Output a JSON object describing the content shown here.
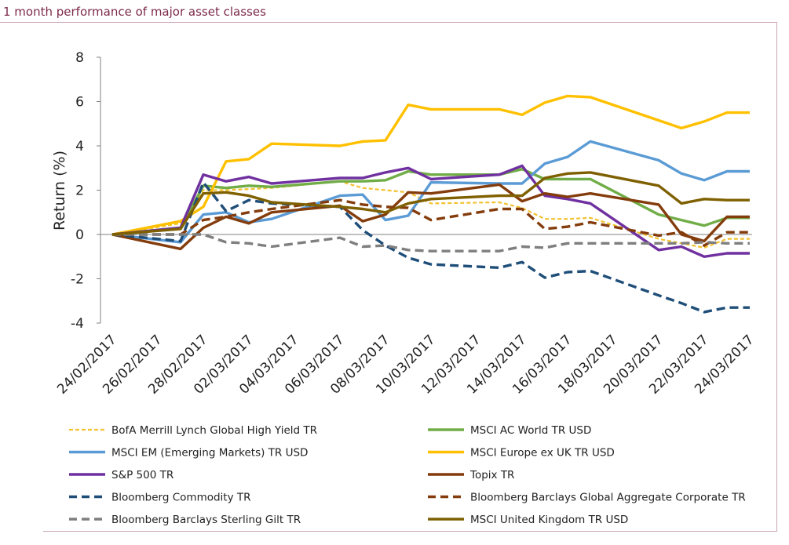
{
  "header": {
    "title": "1 month performance of major asset classes"
  },
  "chart_data": {
    "type": "line",
    "title": "",
    "xlabel": "",
    "ylabel": "Return (%)",
    "ylim": [
      -4,
      8
    ],
    "yticks": [
      -4,
      -2,
      0,
      2,
      4,
      6,
      8
    ],
    "grid": false,
    "legend_position": "bottom",
    "x": [
      "24/02/2017",
      "27/02/2017",
      "28/02/2017",
      "01/03/2017",
      "02/03/2017",
      "03/03/2017",
      "06/03/2017",
      "07/03/2017",
      "08/03/2017",
      "09/03/2017",
      "10/03/2017",
      "13/03/2017",
      "14/03/2017",
      "15/03/2017",
      "16/03/2017",
      "17/03/2017",
      "20/03/2017",
      "21/03/2017",
      "22/03/2017",
      "23/03/2017",
      "24/03/2017"
    ],
    "xticks": [
      "24/02/2017",
      "26/02/2017",
      "28/02/2017",
      "02/03/2017",
      "04/03/2017",
      "06/03/2017",
      "08/03/2017",
      "10/03/2017",
      "12/03/2017",
      "14/03/2017",
      "16/03/2017",
      "18/03/2017",
      "20/03/2017",
      "22/03/2017",
      "24/03/2017"
    ],
    "series": [
      {
        "name": "BofA Merrill Lynch Global High Yield TR",
        "color": "#f2c230",
        "dash": "short",
        "values": [
          0,
          0.5,
          2.0,
          2.0,
          2.05,
          2.1,
          2.4,
          2.1,
          2.0,
          1.9,
          1.4,
          1.45,
          1.2,
          0.7,
          0.7,
          0.75,
          -0.2,
          -0.4,
          -0.6,
          -0.2,
          -0.2
        ]
      },
      {
        "name": "MSCI AC World TR USD",
        "color": "#71ad47",
        "dash": "none",
        "values": [
          0,
          0.3,
          2.2,
          2.1,
          2.2,
          2.15,
          2.4,
          2.4,
          2.45,
          2.85,
          2.7,
          2.7,
          2.95,
          2.5,
          2.5,
          2.5,
          0.9,
          0.65,
          0.4,
          0.75,
          0.75
        ]
      },
      {
        "name": "MSCI EM (Emerging Markets) TR USD",
        "color": "#5b9bd5",
        "dash": "none",
        "values": [
          0,
          -0.35,
          0.9,
          1.0,
          0.55,
          0.7,
          1.75,
          1.8,
          0.65,
          0.85,
          2.35,
          2.3,
          2.3,
          3.2,
          3.5,
          4.2,
          3.35,
          2.75,
          2.45,
          2.85,
          2.85
        ]
      },
      {
        "name": "MSCI Europe ex UK TR USD",
        "color": "#ffc000",
        "dash": "none",
        "values": [
          0,
          0.6,
          1.25,
          3.3,
          3.4,
          4.1,
          4.0,
          4.2,
          4.25,
          5.85,
          5.65,
          5.65,
          5.4,
          5.95,
          6.25,
          6.2,
          5.15,
          4.8,
          5.1,
          5.5,
          5.5
        ]
      },
      {
        "name": "S&P 500 TR",
        "color": "#7030a0",
        "dash": "none",
        "values": [
          0,
          0.3,
          2.7,
          2.4,
          2.6,
          2.3,
          2.55,
          2.55,
          2.8,
          3.0,
          2.5,
          2.7,
          3.1,
          1.75,
          1.6,
          1.4,
          -0.7,
          -0.55,
          -1.0,
          -0.85,
          -0.85
        ]
      },
      {
        "name": "Topix TR",
        "color": "#843c0c",
        "dash": "none",
        "values": [
          0,
          -0.65,
          0.3,
          0.8,
          0.5,
          1.0,
          1.3,
          0.6,
          0.9,
          1.9,
          1.85,
          2.25,
          1.5,
          1.85,
          1.7,
          1.85,
          1.35,
          0.0,
          -0.3,
          0.8,
          0.8
        ]
      },
      {
        "name": "Bloomberg Commodity TR",
        "color": "#1f4e79",
        "dash": "long",
        "values": [
          0,
          -0.3,
          2.35,
          1.05,
          1.55,
          1.4,
          1.25,
          0.2,
          -0.5,
          -1.05,
          -1.35,
          -1.5,
          -1.25,
          -1.95,
          -1.7,
          -1.65,
          -2.75,
          -3.1,
          -3.5,
          -3.3,
          -3.3
        ]
      },
      {
        "name": "Bloomberg Barclays Global Aggregate Corporate TR",
        "color": "#843c0c",
        "dash": "long",
        "values": [
          0,
          0.0,
          0.65,
          0.8,
          1.0,
          1.15,
          1.55,
          1.35,
          1.25,
          1.2,
          0.65,
          1.15,
          1.15,
          0.25,
          0.35,
          0.55,
          -0.05,
          0.1,
          -0.5,
          0.1,
          0.1
        ]
      },
      {
        "name": "Bloomberg Barclays Sterling Gilt TR",
        "color": "#7f7f7f",
        "dash": "long",
        "values": [
          0,
          0.0,
          0.0,
          -0.35,
          -0.4,
          -0.55,
          -0.15,
          -0.55,
          -0.5,
          -0.7,
          -0.75,
          -0.75,
          -0.55,
          -0.6,
          -0.4,
          -0.4,
          -0.4,
          -0.4,
          -0.35,
          -0.4,
          -0.4
        ]
      },
      {
        "name": "MSCI United Kingdom TR USD",
        "color": "#7f6000",
        "dash": "none",
        "values": [
          0,
          0.25,
          1.85,
          1.9,
          1.75,
          1.45,
          1.25,
          1.15,
          1.0,
          1.4,
          1.6,
          1.75,
          1.75,
          2.55,
          2.75,
          2.8,
          2.2,
          1.4,
          1.6,
          1.55,
          1.55
        ]
      }
    ]
  }
}
